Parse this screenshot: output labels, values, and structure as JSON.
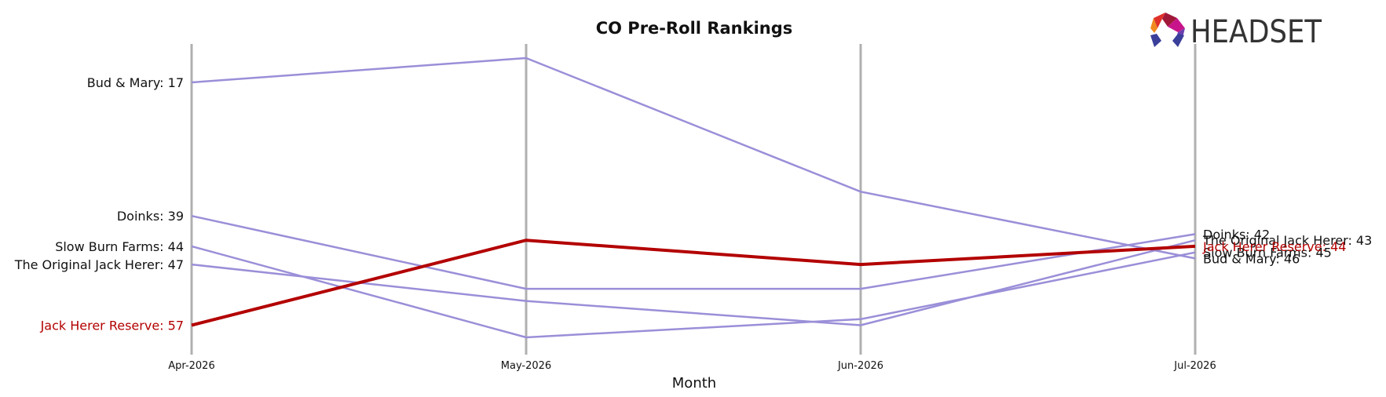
{
  "chart_data": {
    "type": "line",
    "title": "CO Pre-Roll Rankings",
    "xlabel": "Month",
    "ylabel": "",
    "categories": [
      "Apr-2026",
      "May-2026",
      "Jun-2026",
      "Jul-2026"
    ],
    "y_axis": "rank",
    "y_inverted": true,
    "ylim": [
      14,
      58
    ],
    "grid": false,
    "series": [
      {
        "name": "Bud & Mary",
        "values": [
          17,
          13,
          35,
          46
        ],
        "highlight": false,
        "left_label": "Bud & Mary: 17",
        "right_label": "Bud & Mary: 46"
      },
      {
        "name": "Doinks",
        "values": [
          39,
          51,
          51,
          42
        ],
        "highlight": false,
        "left_label": "Doinks: 39",
        "right_label": "Doinks: 42"
      },
      {
        "name": "Slow Burn Farms",
        "values": [
          44,
          59,
          56,
          45
        ],
        "highlight": false,
        "left_label": "Slow Burn Farms: 44",
        "right_label": "Slow Burn Farms: 45"
      },
      {
        "name": "The Original Jack Herer",
        "values": [
          47,
          53,
          57,
          43
        ],
        "highlight": false,
        "left_label": "The Original Jack Herer: 47",
        "right_label": "The Original Jack Herer: 43"
      },
      {
        "name": "Jack Herer Reserve",
        "values": [
          57,
          43,
          47,
          44
        ],
        "highlight": true,
        "left_label": "Jack Herer Reserve: 57",
        "right_label": "Jack Herer Reserve: 44"
      }
    ],
    "colors": {
      "normal": "#9a8fd8",
      "highlight": "#b30000",
      "axis_line": "#b0b0b0",
      "label": "#111111"
    }
  },
  "logo": {
    "text": "HEADSET"
  }
}
